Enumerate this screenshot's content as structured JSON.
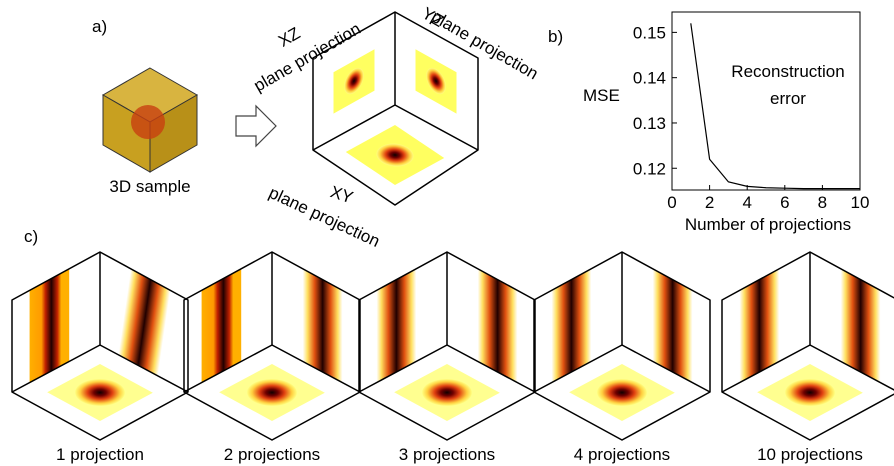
{
  "chart_data": {
    "type": "line",
    "ylabel": "MSE",
    "xlabel": "Number of projections",
    "annotation": [
      "Reconstruction",
      "error"
    ],
    "x": [
      1,
      2,
      3,
      4,
      5,
      6,
      7,
      8,
      9,
      10
    ],
    "series": [
      {
        "color": "#000000",
        "values": [
          0.152,
          0.122,
          0.117,
          0.116,
          0.1157,
          0.1156,
          0.1155,
          0.1155,
          0.1155,
          0.1155
        ]
      }
    ],
    "xlim": [
      0,
      10
    ],
    "xticks": [
      0,
      2,
      4,
      6,
      8,
      10
    ],
    "ylim": [
      0.1152,
      0.1545
    ],
    "yticks": [
      0.12,
      0.13,
      0.14,
      0.15
    ],
    "grid": false
  },
  "figure": {
    "panel_labels": [
      "a)",
      "b)",
      "c)"
    ],
    "sample_label": "3D sample",
    "projections": [
      {
        "plane": "XZ",
        "label": "plane projection"
      },
      {
        "plane": "YZ",
        "label": "plane projection"
      },
      {
        "plane": "XY",
        "label": "plane projection"
      }
    ],
    "cubes": [
      {
        "caption": "1 projection"
      },
      {
        "caption": "2 projections"
      },
      {
        "caption": "3 projections"
      },
      {
        "caption": "4 projections"
      },
      {
        "caption": "10 projections"
      }
    ]
  }
}
